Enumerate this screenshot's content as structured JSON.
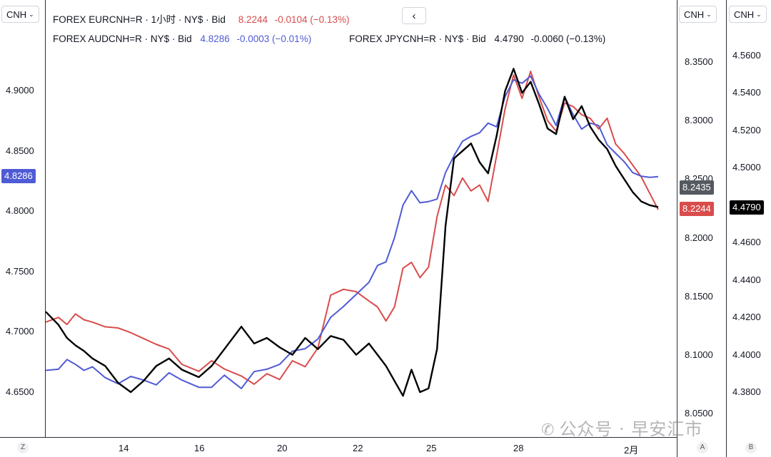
{
  "currency_left": "CNH",
  "currency_mid": "CNH",
  "currency_right": "CNH",
  "back_icon": "chevron-left-icon",
  "legend": {
    "eur": {
      "name": "FOREX EURCNH=R · 1小时 · NY$ · Bid",
      "price": "8.2244",
      "change": "-0.0104 (−0.13%)",
      "color": "#d94c4c"
    },
    "aud": {
      "name": "FOREX AUDCNH=R · NY$ · Bid",
      "price": "4.8286",
      "change": "-0.0003 (−0.01%)",
      "color": "#4f5bd5"
    },
    "jpy": {
      "name": "FOREX JPYCNH=R · NY$ · Bid",
      "price": "4.4790",
      "change": "-0.0060 (−0.13%)",
      "color": "#000000"
    }
  },
  "price_tags": {
    "aud": "4.8286",
    "mid_grey": "8.2435",
    "eur": "8.2244",
    "jpy": "4.4790"
  },
  "axis_badges": {
    "left": "Z",
    "mid": "A",
    "right": "B"
  },
  "watermark": "公众号 · 早安汇市",
  "chart_data": {
    "type": "line",
    "x_labels": [
      "14",
      "16",
      "20",
      "22",
      "25",
      "28",
      "2月"
    ],
    "left_axis": {
      "ticks": [
        "4.9000",
        "4.8500",
        "4.8000",
        "4.7500",
        "4.7000",
        "4.6500"
      ],
      "range": [
        4.63,
        4.98
      ]
    },
    "mid_axis": {
      "ticks": [
        "8.3500",
        "8.3000",
        "8.2500",
        "8.2000",
        "8.1500",
        "8.1000",
        "8.0500"
      ],
      "range": [
        8.04,
        8.37
      ]
    },
    "right_axis": {
      "ticks": [
        "4.5600",
        "4.5400",
        "4.5200",
        "4.5000",
        "4.4800",
        "4.4600",
        "4.4400",
        "4.4200",
        "4.4000",
        "4.3800"
      ],
      "range": [
        4.37,
        4.57
      ]
    },
    "series": [
      {
        "name": "FOREX EURCNH=R",
        "axis": "mid",
        "color": "#d94c4c",
        "points": [
          [
            0,
            8.128
          ],
          [
            3,
            8.132
          ],
          [
            5,
            8.126
          ],
          [
            7,
            8.135
          ],
          [
            9,
            8.13
          ],
          [
            11,
            8.128
          ],
          [
            14,
            8.124
          ],
          [
            17,
            8.123
          ],
          [
            20,
            8.119
          ],
          [
            23,
            8.114
          ],
          [
            26,
            8.109
          ],
          [
            29,
            8.105
          ],
          [
            32,
            8.092
          ],
          [
            36,
            8.086
          ],
          [
            39,
            8.095
          ],
          [
            42,
            8.088
          ],
          [
            46,
            8.082
          ],
          [
            49,
            8.075
          ],
          [
            52,
            8.084
          ],
          [
            55,
            8.079
          ],
          [
            58,
            8.095
          ],
          [
            61,
            8.09
          ],
          [
            64,
            8.106
          ],
          [
            67,
            8.151
          ],
          [
            70,
            8.156
          ],
          [
            73,
            8.154
          ],
          [
            76,
            8.146
          ],
          [
            78,
            8.141
          ],
          [
            80,
            8.129
          ],
          [
            82,
            8.141
          ],
          [
            84,
            8.174
          ],
          [
            86,
            8.179
          ],
          [
            88,
            8.166
          ],
          [
            90,
            8.175
          ],
          [
            92,
            8.218
          ],
          [
            94,
            8.245
          ],
          [
            96,
            8.236
          ],
          [
            98,
            8.251
          ],
          [
            100,
            8.24
          ],
          [
            102,
            8.245
          ],
          [
            104,
            8.231
          ],
          [
            106,
            8.27
          ],
          [
            108,
            8.31
          ],
          [
            110,
            8.339
          ],
          [
            112,
            8.319
          ],
          [
            114,
            8.342
          ],
          [
            116,
            8.32
          ],
          [
            118,
            8.3
          ],
          [
            120,
            8.291
          ],
          [
            122,
            8.315
          ],
          [
            124,
            8.312
          ],
          [
            126,
            8.305
          ],
          [
            128,
            8.302
          ],
          [
            130,
            8.293
          ],
          [
            132,
            8.302
          ],
          [
            134,
            8.28
          ],
          [
            136,
            8.272
          ],
          [
            138,
            8.262
          ],
          [
            140,
            8.252
          ],
          [
            142,
            8.238
          ],
          [
            144,
            8.224
          ]
        ]
      },
      {
        "name": "FOREX AUDCNH=R",
        "axis": "left",
        "color": "#4f5bd5",
        "points": [
          [
            0,
            4.668
          ],
          [
            3,
            4.669
          ],
          [
            5,
            4.677
          ],
          [
            7,
            4.673
          ],
          [
            9,
            4.668
          ],
          [
            11,
            4.671
          ],
          [
            14,
            4.662
          ],
          [
            17,
            4.657
          ],
          [
            20,
            4.663
          ],
          [
            23,
            4.66
          ],
          [
            26,
            4.656
          ],
          [
            29,
            4.666
          ],
          [
            32,
            4.66
          ],
          [
            36,
            4.654
          ],
          [
            39,
            4.654
          ],
          [
            42,
            4.664
          ],
          [
            46,
            4.653
          ],
          [
            49,
            4.667
          ],
          [
            52,
            4.669
          ],
          [
            55,
            4.673
          ],
          [
            58,
            4.684
          ],
          [
            61,
            4.686
          ],
          [
            64,
            4.694
          ],
          [
            67,
            4.712
          ],
          [
            70,
            4.721
          ],
          [
            73,
            4.731
          ],
          [
            76,
            4.741
          ],
          [
            78,
            4.755
          ],
          [
            80,
            4.758
          ],
          [
            82,
            4.778
          ],
          [
            84,
            4.805
          ],
          [
            86,
            4.817
          ],
          [
            88,
            4.807
          ],
          [
            90,
            4.808
          ],
          [
            92,
            4.81
          ],
          [
            94,
            4.832
          ],
          [
            96,
            4.846
          ],
          [
            98,
            4.858
          ],
          [
            100,
            4.862
          ],
          [
            102,
            4.865
          ],
          [
            104,
            4.873
          ],
          [
            106,
            4.87
          ],
          [
            108,
            4.895
          ],
          [
            110,
            4.909
          ],
          [
            112,
            4.906
          ],
          [
            114,
            4.912
          ],
          [
            116,
            4.897
          ],
          [
            118,
            4.885
          ],
          [
            120,
            4.871
          ],
          [
            122,
            4.895
          ],
          [
            124,
            4.88
          ],
          [
            126,
            4.868
          ],
          [
            128,
            4.873
          ],
          [
            130,
            4.871
          ],
          [
            132,
            4.855
          ],
          [
            134,
            4.848
          ],
          [
            136,
            4.841
          ],
          [
            138,
            4.832
          ],
          [
            140,
            4.829
          ],
          [
            142,
            4.828
          ],
          [
            144,
            4.8286
          ]
        ]
      },
      {
        "name": "FOREX JPYCNH=R",
        "axis": "right",
        "color": "#000000",
        "points": [
          [
            0,
            4.423
          ],
          [
            3,
            4.416
          ],
          [
            5,
            4.409
          ],
          [
            7,
            4.405
          ],
          [
            9,
            4.402
          ],
          [
            11,
            4.398
          ],
          [
            14,
            4.394
          ],
          [
            17,
            4.385
          ],
          [
            20,
            4.38
          ],
          [
            23,
            4.386
          ],
          [
            26,
            4.394
          ],
          [
            29,
            4.398
          ],
          [
            32,
            4.392
          ],
          [
            36,
            4.388
          ],
          [
            39,
            4.394
          ],
          [
            42,
            4.403
          ],
          [
            46,
            4.415
          ],
          [
            49,
            4.406
          ],
          [
            52,
            4.409
          ],
          [
            55,
            4.404
          ],
          [
            58,
            4.4
          ],
          [
            61,
            4.409
          ],
          [
            64,
            4.403
          ],
          [
            67,
            4.41
          ],
          [
            70,
            4.408
          ],
          [
            73,
            4.4
          ],
          [
            76,
            4.406
          ],
          [
            78,
            4.4
          ],
          [
            80,
            4.394
          ],
          [
            82,
            4.386
          ],
          [
            84,
            4.378
          ],
          [
            86,
            4.392
          ],
          [
            88,
            4.38
          ],
          [
            90,
            4.382
          ],
          [
            92,
            4.403
          ],
          [
            94,
            4.469
          ],
          [
            96,
            4.505
          ],
          [
            98,
            4.509
          ],
          [
            100,
            4.513
          ],
          [
            102,
            4.503
          ],
          [
            104,
            4.497
          ],
          [
            106,
            4.517
          ],
          [
            108,
            4.541
          ],
          [
            110,
            4.553
          ],
          [
            112,
            4.54
          ],
          [
            114,
            4.546
          ],
          [
            116,
            4.534
          ],
          [
            118,
            4.521
          ],
          [
            120,
            4.518
          ],
          [
            122,
            4.538
          ],
          [
            124,
            4.526
          ],
          [
            126,
            4.533
          ],
          [
            128,
            4.522
          ],
          [
            130,
            4.515
          ],
          [
            132,
            4.51
          ],
          [
            134,
            4.501
          ],
          [
            136,
            4.494
          ],
          [
            138,
            4.487
          ],
          [
            140,
            4.482
          ],
          [
            142,
            4.48
          ],
          [
            144,
            4.479
          ]
        ]
      }
    ]
  }
}
